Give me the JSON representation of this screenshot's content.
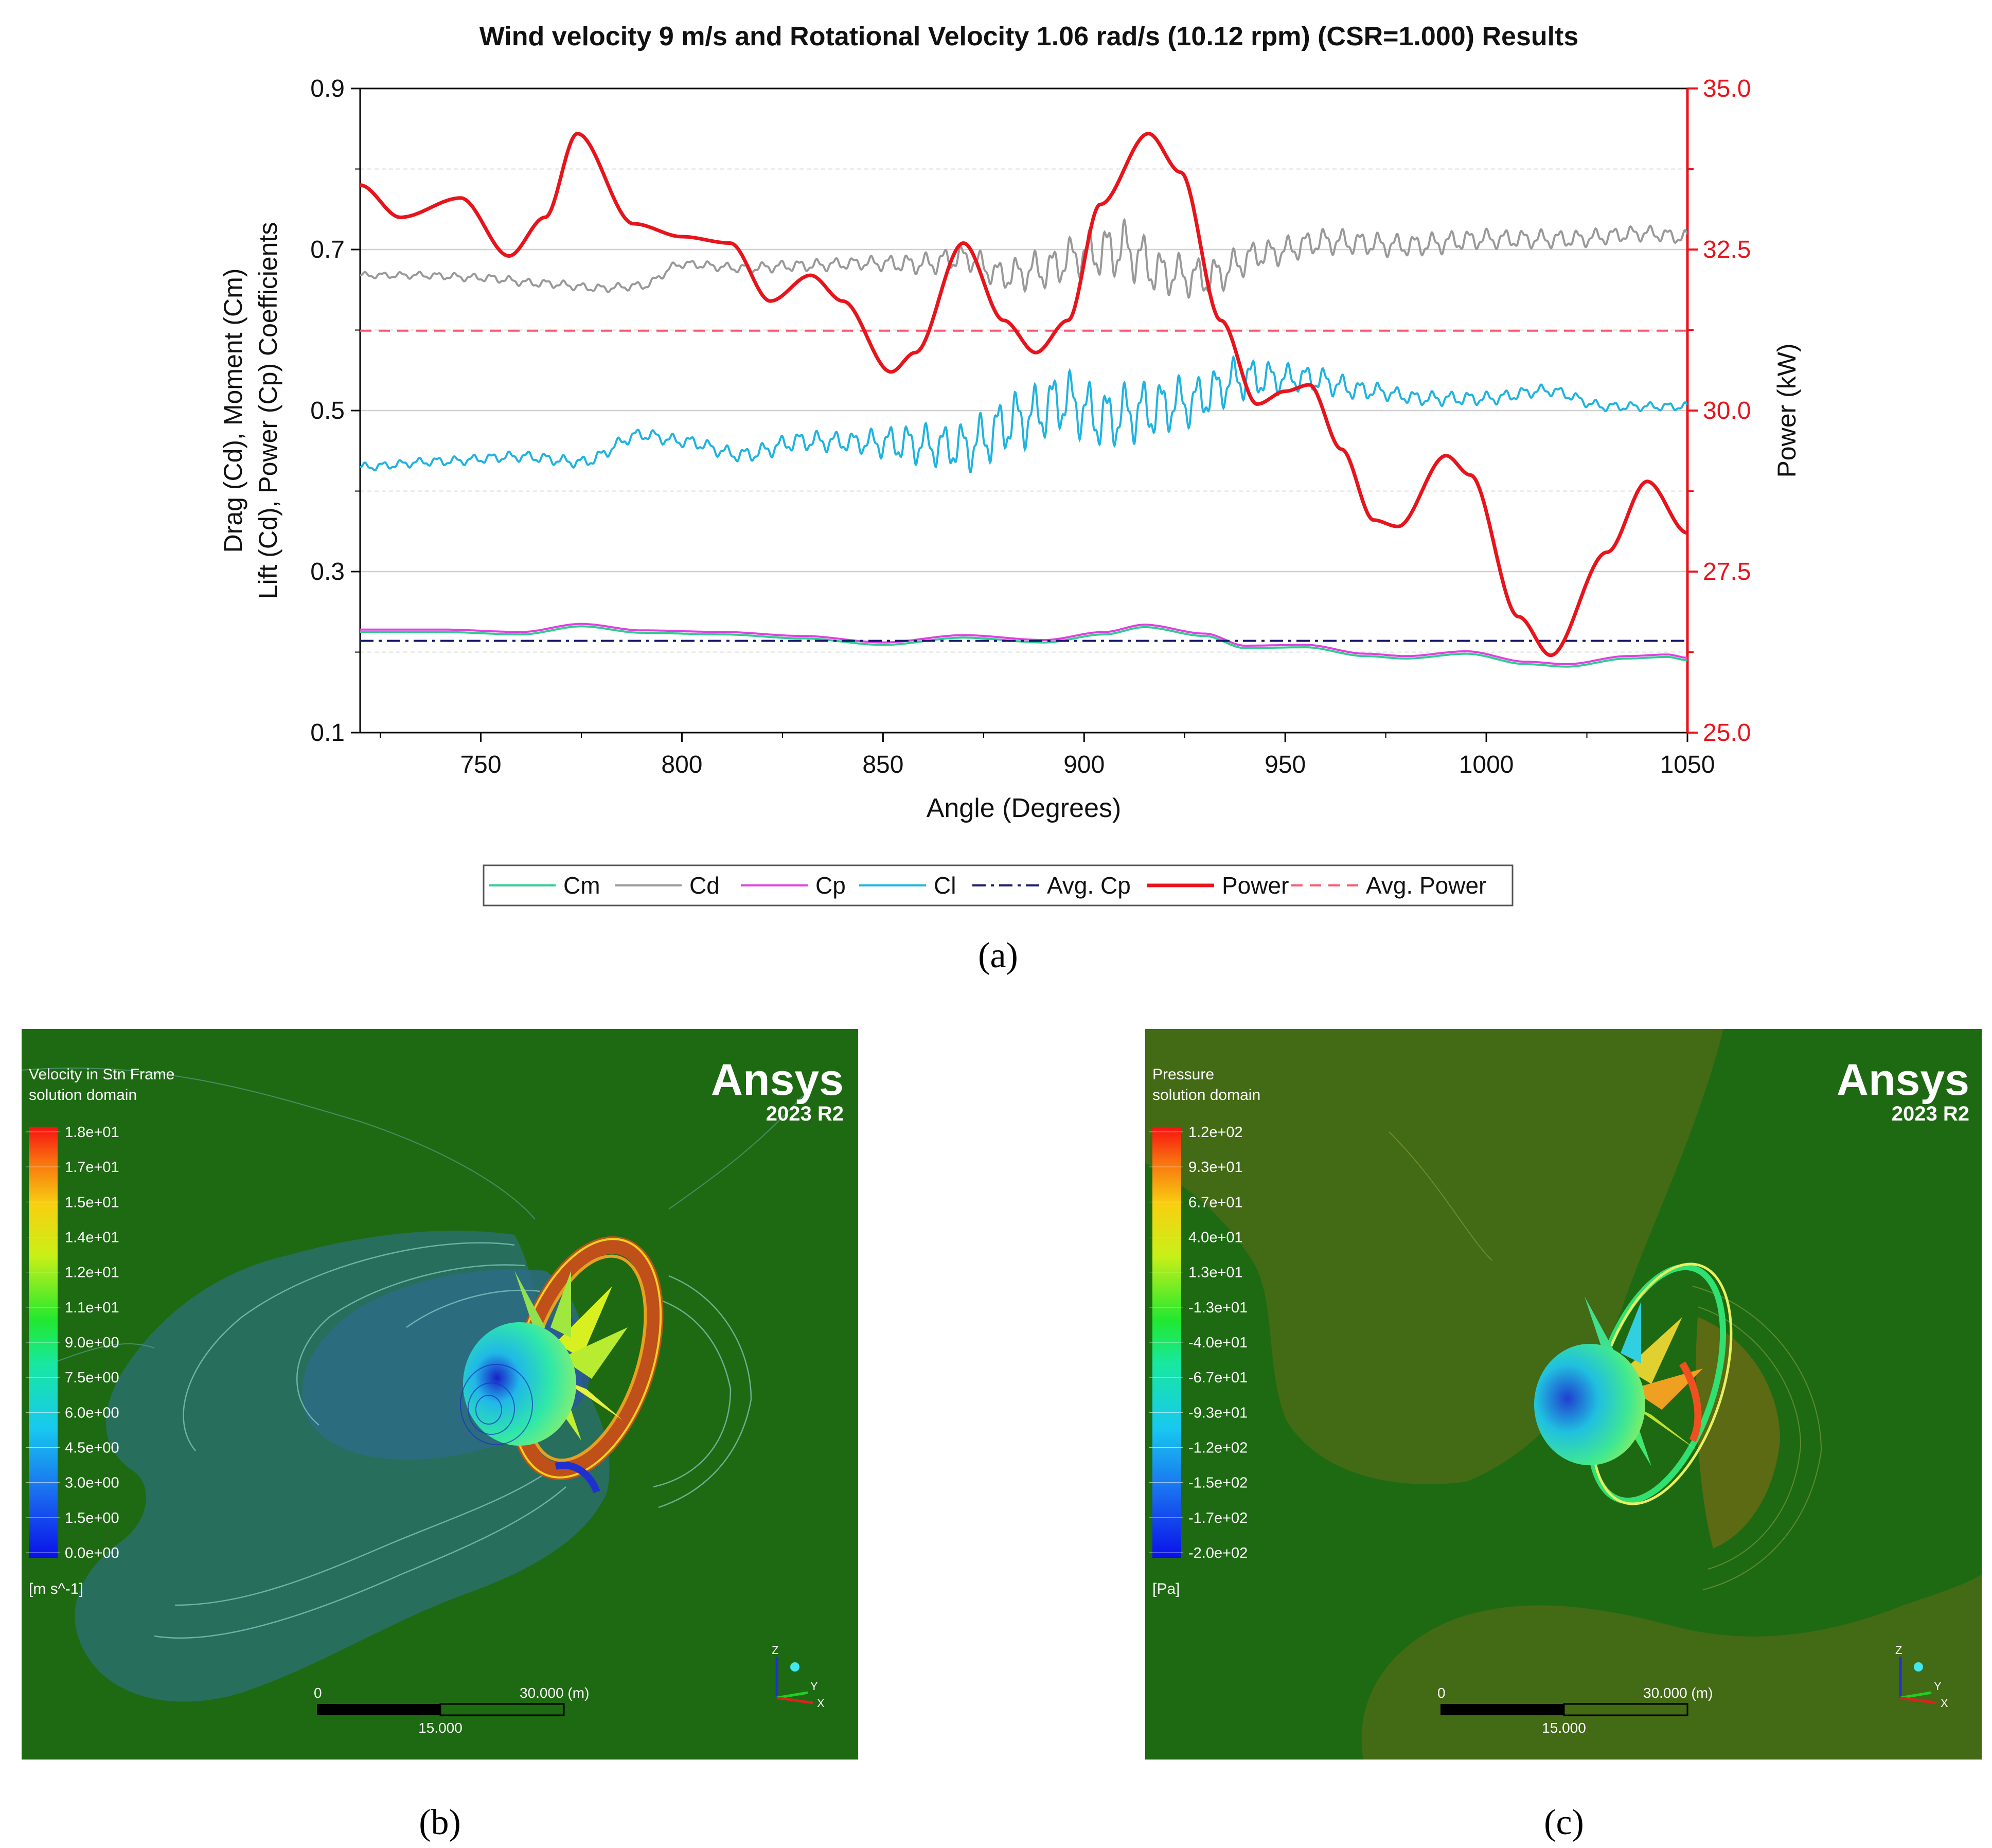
{
  "chart_data": [
    {
      "type": "line",
      "panel": "a",
      "title": "Wind velocity 9 m/s and  Rotational Velocity 1.06 rad/s (10.12 rpm) (CSR=1.000) Results",
      "xlabel": "Angle (Degrees)",
      "ylabel_line1": "Drag (Cd), Moment (Cm)",
      "ylabel_line2": "Lift (Cd), Power (Cp) Coefficients",
      "y2label": "Power (kW)",
      "xlim": [
        720,
        1050
      ],
      "ylim": [
        0.1,
        0.9
      ],
      "y2lim": [
        25.0,
        35.0
      ],
      "xticks": [
        "750",
        "800",
        "850",
        "900",
        "950",
        "1000",
        "1050"
      ],
      "yticks": [
        "0.1",
        "0.3",
        "0.5",
        "0.7",
        "0.9"
      ],
      "y2ticks": [
        "25.0",
        "27.5",
        "30.0",
        "32.5",
        "35.0"
      ],
      "legend_position": "bottom",
      "colors": {
        "Cm": "#2ecc8f",
        "Cd": "#999999",
        "Cp": "#e040e0",
        "Cl": "#1fb3e0",
        "AvgCp": "#1a1a6e",
        "Power": "#e8141c",
        "AvgPower": "#ff5570"
      },
      "series": [
        {
          "name": "Cm",
          "axis": "left",
          "style": "solid",
          "points": [
            [
              720,
              0.225
            ],
            [
              740,
              0.225
            ],
            [
              760,
              0.222
            ],
            [
              775,
              0.232
            ],
            [
              790,
              0.224
            ],
            [
              810,
              0.222
            ],
            [
              830,
              0.217
            ],
            [
              850,
              0.209
            ],
            [
              870,
              0.218
            ],
            [
              890,
              0.212
            ],
            [
              905,
              0.222
            ],
            [
              915,
              0.231
            ],
            [
              930,
              0.22
            ],
            [
              940,
              0.205
            ],
            [
              955,
              0.206
            ],
            [
              970,
              0.195
            ],
            [
              980,
              0.192
            ],
            [
              995,
              0.198
            ],
            [
              1010,
              0.185
            ],
            [
              1020,
              0.182
            ],
            [
              1035,
              0.192
            ],
            [
              1045,
              0.194
            ],
            [
              1050,
              0.19
            ]
          ]
        },
        {
          "name": "Cd",
          "axis": "left",
          "style": "solid",
          "points": [
            [
              720,
              0.668
            ],
            [
              735,
              0.668
            ],
            [
              750,
              0.665
            ],
            [
              765,
              0.658
            ],
            [
              780,
              0.652
            ],
            [
              790,
              0.655
            ],
            [
              800,
              0.682
            ],
            [
              815,
              0.677
            ],
            [
              830,
              0.68
            ],
            [
              845,
              0.683
            ],
            [
              860,
              0.682
            ],
            [
              870,
              0.69
            ],
            [
              880,
              0.668
            ],
            [
              890,
              0.675
            ],
            [
              900,
              0.695
            ],
            [
              910,
              0.7
            ],
            [
              920,
              0.67
            ],
            [
              930,
              0.665
            ],
            [
              945,
              0.695
            ],
            [
              960,
              0.71
            ],
            [
              980,
              0.705
            ],
            [
              1000,
              0.713
            ],
            [
              1020,
              0.713
            ],
            [
              1040,
              0.72
            ],
            [
              1050,
              0.715
            ]
          ],
          "oscillation": [
            [
              720,
              0.003
            ],
            [
              760,
              0.004
            ],
            [
              800,
              0.004
            ],
            [
              840,
              0.006
            ],
            [
              870,
              0.012
            ],
            [
              895,
              0.02
            ],
            [
              910,
              0.028
            ],
            [
              925,
              0.02
            ],
            [
              950,
              0.013
            ],
            [
              980,
              0.011
            ],
            [
              1010,
              0.009
            ],
            [
              1050,
              0.007
            ]
          ]
        },
        {
          "name": "Cp",
          "axis": "left",
          "style": "solid",
          "points": [
            [
              720,
              0.228
            ],
            [
              740,
              0.228
            ],
            [
              760,
              0.225
            ],
            [
              775,
              0.235
            ],
            [
              790,
              0.227
            ],
            [
              810,
              0.225
            ],
            [
              830,
              0.22
            ],
            [
              850,
              0.212
            ],
            [
              870,
              0.221
            ],
            [
              890,
              0.215
            ],
            [
              905,
              0.225
            ],
            [
              915,
              0.234
            ],
            [
              930,
              0.223
            ],
            [
              940,
              0.208
            ],
            [
              955,
              0.209
            ],
            [
              970,
              0.198
            ],
            [
              980,
              0.195
            ],
            [
              995,
              0.201
            ],
            [
              1010,
              0.188
            ],
            [
              1020,
              0.185
            ],
            [
              1035,
              0.195
            ],
            [
              1045,
              0.197
            ],
            [
              1050,
              0.193
            ]
          ]
        },
        {
          "name": "Cl",
          "axis": "left",
          "style": "solid",
          "points": [
            [
              720,
              0.43
            ],
            [
              740,
              0.437
            ],
            [
              760,
              0.443
            ],
            [
              775,
              0.436
            ],
            [
              790,
              0.47
            ],
            [
              800,
              0.462
            ],
            [
              815,
              0.445
            ],
            [
              830,
              0.462
            ],
            [
              850,
              0.46
            ],
            [
              870,
              0.455
            ],
            [
              885,
              0.49
            ],
            [
              895,
              0.512
            ],
            [
              905,
              0.49
            ],
            [
              915,
              0.5
            ],
            [
              925,
              0.51
            ],
            [
              940,
              0.54
            ],
            [
              955,
              0.54
            ],
            [
              970,
              0.525
            ],
            [
              985,
              0.515
            ],
            [
              1000,
              0.515
            ],
            [
              1015,
              0.525
            ],
            [
              1030,
              0.505
            ],
            [
              1050,
              0.505
            ]
          ],
          "oscillation": [
            [
              720,
              0.004
            ],
            [
              800,
              0.006
            ],
            [
              840,
              0.01
            ],
            [
              860,
              0.02
            ],
            [
              880,
              0.028
            ],
            [
              895,
              0.03
            ],
            [
              910,
              0.03
            ],
            [
              935,
              0.022
            ],
            [
              955,
              0.013
            ],
            [
              980,
              0.007
            ],
            [
              1050,
              0.004
            ]
          ]
        },
        {
          "name": "Avg. Cp",
          "axis": "left",
          "style": "dashdot",
          "points": [
            [
              720,
              0.214
            ],
            [
              1050,
              0.214
            ]
          ]
        },
        {
          "name": "Power",
          "axis": "right",
          "style": "solid",
          "points": [
            [
              720,
              33.5
            ],
            [
              730,
              33.0
            ],
            [
              745,
              33.3
            ],
            [
              757,
              32.4
            ],
            [
              766,
              33.0
            ],
            [
              774,
              34.3
            ],
            [
              788,
              32.9
            ],
            [
              800,
              32.7
            ],
            [
              812,
              32.6
            ],
            [
              822,
              31.7
            ],
            [
              832,
              32.1
            ],
            [
              840,
              31.7
            ],
            [
              852,
              30.6
            ],
            [
              858,
              30.9
            ],
            [
              870,
              32.6
            ],
            [
              880,
              31.4
            ],
            [
              888,
              30.9
            ],
            [
              896,
              31.4
            ],
            [
              904,
              33.2
            ],
            [
              916,
              34.3
            ],
            [
              924,
              33.7
            ],
            [
              934,
              31.4
            ],
            [
              943,
              30.1
            ],
            [
              950,
              30.3
            ],
            [
              956,
              30.4
            ],
            [
              964,
              29.4
            ],
            [
              972,
              28.3
            ],
            [
              978,
              28.2
            ],
            [
              990,
              29.3
            ],
            [
              996,
              29.0
            ],
            [
              1008,
              26.8
            ],
            [
              1016,
              26.2
            ],
            [
              1030,
              27.8
            ],
            [
              1040,
              28.9
            ],
            [
              1050,
              28.1
            ]
          ]
        },
        {
          "name": "Avg. Power",
          "axis": "right",
          "style": "dashed",
          "points": [
            [
              720,
              31.24
            ],
            [
              1050,
              31.24
            ]
          ]
        }
      ]
    }
  ],
  "panels": {
    "a_label": "(a)",
    "b_label": "(b)",
    "c_label": "(c)"
  },
  "velocity_plot": {
    "header": "Velocity in Stn Frame",
    "subheader": "solution domain",
    "brand": "Ansys",
    "version": "2023 R2",
    "legend_values": [
      "1.8e+01",
      "1.7e+01",
      "1.5e+01",
      "1.4e+01",
      "1.2e+01",
      "1.1e+01",
      "9.0e+00",
      "7.5e+00",
      "6.0e+00",
      "4.5e+00",
      "3.0e+00",
      "1.5e+00",
      "0.0e+00"
    ],
    "unit": "[m s^-1]",
    "scale_start": "0",
    "scale_end": "30.000  (m)",
    "scale_mid": "15.000",
    "axes": [
      "Z",
      "Y",
      "X"
    ]
  },
  "pressure_plot": {
    "header": "Pressure",
    "subheader": "solution domain",
    "brand": "Ansys",
    "version": "2023 R2",
    "legend_values": [
      "1.2e+02",
      "9.3e+01",
      "6.7e+01",
      "4.0e+01",
      "1.3e+01",
      "-1.3e+01",
      "-4.0e+01",
      "-6.7e+01",
      "-9.3e+01",
      "-1.2e+02",
      "-1.5e+02",
      "-1.7e+02",
      "-2.0e+02"
    ],
    "unit": "[Pa]",
    "scale_start": "0",
    "scale_end": "30.000  (m)",
    "scale_mid": "15.000",
    "axes": [
      "Z",
      "Y",
      "X"
    ]
  }
}
